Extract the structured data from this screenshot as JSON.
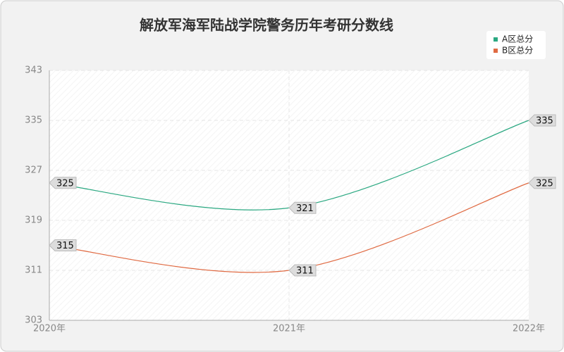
{
  "chart_data": {
    "type": "line",
    "title": "解放军海军陆战学院警务历年考研分数线",
    "categories": [
      "2020年",
      "2021年",
      "2022年"
    ],
    "series": [
      {
        "name": "A区总分",
        "color": "#2aa881",
        "values": [
          325,
          321,
          335
        ]
      },
      {
        "name": "B区总分",
        "color": "#e06a42",
        "values": [
          315,
          311,
          325
        ]
      }
    ],
    "ylim": [
      303,
      343
    ],
    "yticks": [
      303,
      311,
      319,
      327,
      335,
      343
    ],
    "grid": true,
    "legend": "top-right",
    "smooth": true
  }
}
